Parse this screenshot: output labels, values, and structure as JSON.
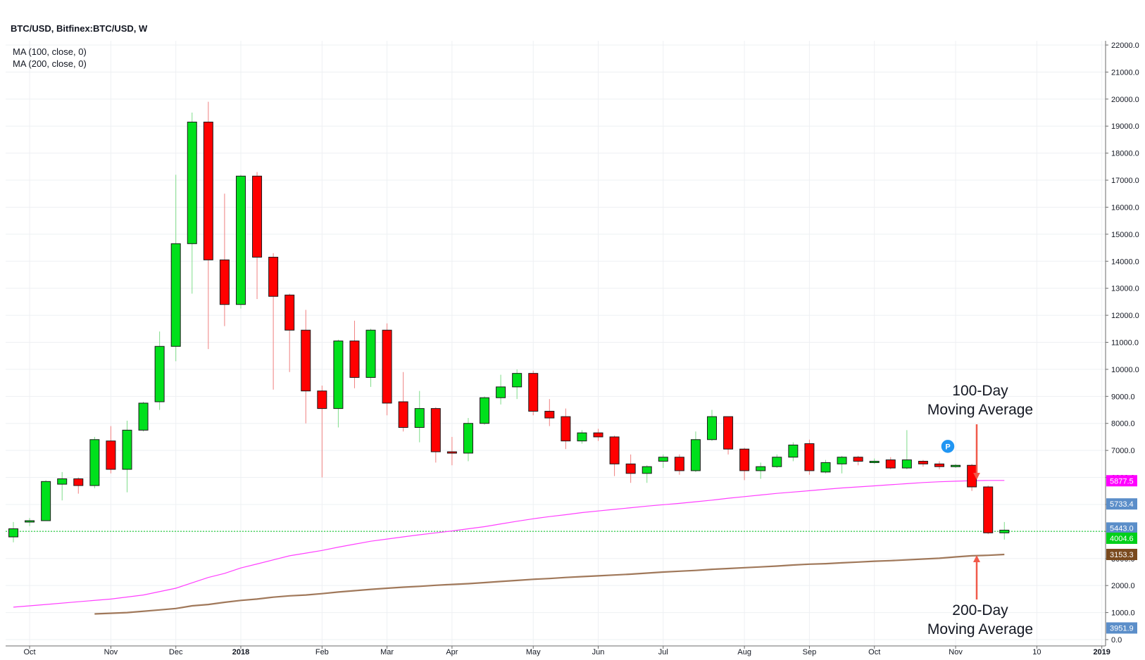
{
  "header": {
    "title": "BTC/USD, Bitfinex:BTC/USD, W",
    "indicators": [
      "MA (100, close, 0)",
      "MA (200, close, 0)"
    ]
  },
  "chart_data": {
    "type": "candlestick",
    "interval": "weekly",
    "ylim": [
      0,
      22000
    ],
    "yticks": [
      0,
      1000,
      2000,
      3000,
      4000,
      5000,
      6000,
      7000,
      8000,
      9000,
      10000,
      11000,
      12000,
      13000,
      14000,
      15000,
      16000,
      17000,
      18000,
      19000,
      20000,
      21000,
      22000
    ],
    "ytick_labels": [
      "0.0",
      "1000.0",
      "2000.0",
      "3000.0",
      "4000.0",
      "5000.0",
      "6000.0",
      "7000.0",
      "8000.0",
      "9000.0",
      "10000.0",
      "11000.0",
      "12000.0",
      "13000.0",
      "14000.0",
      "15000.0",
      "16000.0",
      "17000.0",
      "18000.0",
      "19000.0",
      "20000.0",
      "21000.0",
      "22000.0"
    ],
    "xticks": [
      {
        "label": "Oct",
        "week": 1,
        "bold": false
      },
      {
        "label": "Nov",
        "week": 6,
        "bold": false
      },
      {
        "label": "Dec",
        "week": 10,
        "bold": false
      },
      {
        "label": "2018",
        "week": 14,
        "bold": true
      },
      {
        "label": "Feb",
        "week": 19,
        "bold": false
      },
      {
        "label": "Mar",
        "week": 23,
        "bold": false
      },
      {
        "label": "Apr",
        "week": 27,
        "bold": false
      },
      {
        "label": "May",
        "week": 32,
        "bold": false
      },
      {
        "label": "Jun",
        "week": 36,
        "bold": false
      },
      {
        "label": "Jul",
        "week": 40,
        "bold": false
      },
      {
        "label": "Aug",
        "week": 45,
        "bold": false
      },
      {
        "label": "Sep",
        "week": 49,
        "bold": false
      },
      {
        "label": "Oct",
        "week": 53,
        "bold": false
      },
      {
        "label": "Nov",
        "week": 58,
        "bold": false
      },
      {
        "label": "10",
        "week": 63,
        "bold": false
      },
      {
        "label": "2019",
        "week": 67,
        "bold": true
      }
    ],
    "up_color": "#00e01c",
    "down_color": "#ff0000",
    "candles": [
      [
        0,
        3800,
        4100,
        3600,
        4350
      ],
      [
        1,
        4350,
        4400,
        4200,
        4500
      ],
      [
        2,
        4400,
        5850,
        4400,
        5900
      ],
      [
        3,
        5750,
        5950,
        5150,
        6200
      ],
      [
        4,
        5950,
        5700,
        5400,
        6000
      ],
      [
        5,
        5700,
        7400,
        5600,
        7500
      ],
      [
        6,
        7350,
        6300,
        6150,
        7900
      ],
      [
        7,
        6300,
        7750,
        5450,
        8100
      ],
      [
        8,
        7750,
        8750,
        7700,
        8800
      ],
      [
        9,
        8800,
        10850,
        8500,
        11400
      ],
      [
        10,
        10850,
        14650,
        10300,
        17200
      ],
      [
        11,
        14650,
        19150,
        12800,
        19500
      ],
      [
        12,
        19150,
        14050,
        10750,
        19900
      ],
      [
        13,
        14050,
        12400,
        11600,
        16500
      ],
      [
        14,
        12400,
        17150,
        12250,
        17200
      ],
      [
        15,
        17150,
        14150,
        12600,
        17300
      ],
      [
        16,
        14150,
        12700,
        9250,
        14300
      ],
      [
        17,
        12750,
        11450,
        9900,
        12800
      ],
      [
        18,
        11450,
        9200,
        8000,
        12200
      ],
      [
        19,
        9200,
        8550,
        6000,
        9400
      ],
      [
        20,
        8550,
        11050,
        7850,
        11100
      ],
      [
        21,
        11050,
        9700,
        9300,
        11800
      ],
      [
        22,
        9700,
        11450,
        9350,
        11500
      ],
      [
        23,
        11450,
        8750,
        8300,
        11700
      ],
      [
        24,
        8800,
        7850,
        7700,
        9900
      ],
      [
        25,
        7850,
        8550,
        7300,
        9200
      ],
      [
        26,
        8550,
        6950,
        6550,
        8600
      ],
      [
        27,
        6950,
        6900,
        6450,
        7500
      ],
      [
        28,
        6900,
        8000,
        6600,
        8200
      ],
      [
        29,
        8000,
        8950,
        7950,
        9000
      ],
      [
        30,
        8950,
        9350,
        8700,
        9800
      ],
      [
        31,
        9350,
        9850,
        8900,
        10000
      ],
      [
        32,
        9850,
        8450,
        8300,
        9950
      ],
      [
        33,
        8450,
        8200,
        7900,
        8900
      ],
      [
        34,
        8250,
        7350,
        7050,
        8550
      ],
      [
        35,
        7350,
        7650,
        7250,
        7750
      ],
      [
        36,
        7650,
        7500,
        7350,
        7800
      ],
      [
        37,
        7500,
        6500,
        6050,
        7550
      ],
      [
        38,
        6500,
        6150,
        5800,
        6850
      ],
      [
        39,
        6150,
        6400,
        5800,
        6450
      ],
      [
        40,
        6600,
        6750,
        6350,
        6850
      ],
      [
        41,
        6750,
        6250,
        6100,
        6850
      ],
      [
        42,
        6250,
        7400,
        6200,
        7700
      ],
      [
        43,
        7400,
        8250,
        7350,
        8500
      ],
      [
        44,
        8250,
        7050,
        6850,
        8250
      ],
      [
        45,
        7050,
        6250,
        5900,
        7100
      ],
      [
        46,
        6250,
        6400,
        5950,
        6550
      ],
      [
        47,
        6400,
        6750,
        6350,
        6850
      ],
      [
        48,
        6750,
        7200,
        6600,
        7300
      ],
      [
        49,
        7250,
        6250,
        6100,
        7400
      ],
      [
        50,
        6200,
        6550,
        6150,
        6650
      ],
      [
        51,
        6500,
        6750,
        6150,
        6800
      ],
      [
        52,
        6750,
        6600,
        6450,
        6800
      ],
      [
        53,
        6600,
        6600,
        6500,
        6700
      ],
      [
        54,
        6650,
        6350,
        6300,
        6750
      ],
      [
        55,
        6350,
        6650,
        6300,
        7750
      ],
      [
        56,
        6600,
        6500,
        6400,
        6650
      ],
      [
        57,
        6500,
        6400,
        6300,
        6600
      ],
      [
        58,
        6400,
        6450,
        6350,
        6500
      ],
      [
        59,
        6450,
        5650,
        5500,
        6500
      ],
      [
        60,
        5650,
        3950,
        3900,
        5700
      ],
      [
        61,
        3950,
        4050,
        3700,
        4350
      ]
    ],
    "series": [
      {
        "name": "MA (100, close, 0)",
        "color": "#ff40ff",
        "points": [
          [
            0,
            1200
          ],
          [
            2,
            1300
          ],
          [
            4,
            1400
          ],
          [
            6,
            1500
          ],
          [
            8,
            1650
          ],
          [
            10,
            1900
          ],
          [
            11,
            2100
          ],
          [
            12,
            2300
          ],
          [
            13,
            2450
          ],
          [
            14,
            2650
          ],
          [
            15,
            2800
          ],
          [
            16,
            2950
          ],
          [
            17,
            3100
          ],
          [
            18,
            3200
          ],
          [
            19,
            3300
          ],
          [
            20,
            3420
          ],
          [
            21,
            3530
          ],
          [
            22,
            3640
          ],
          [
            23,
            3720
          ],
          [
            24,
            3800
          ],
          [
            25,
            3880
          ],
          [
            26,
            3950
          ],
          [
            27,
            4020
          ],
          [
            28,
            4100
          ],
          [
            29,
            4180
          ],
          [
            30,
            4280
          ],
          [
            31,
            4380
          ],
          [
            32,
            4470
          ],
          [
            33,
            4550
          ],
          [
            34,
            4620
          ],
          [
            35,
            4700
          ],
          [
            36,
            4760
          ],
          [
            37,
            4820
          ],
          [
            38,
            4880
          ],
          [
            39,
            4940
          ],
          [
            40,
            4990
          ],
          [
            41,
            5040
          ],
          [
            42,
            5100
          ],
          [
            43,
            5160
          ],
          [
            44,
            5230
          ],
          [
            45,
            5290
          ],
          [
            46,
            5350
          ],
          [
            47,
            5410
          ],
          [
            48,
            5460
          ],
          [
            49,
            5510
          ],
          [
            50,
            5560
          ],
          [
            51,
            5610
          ],
          [
            52,
            5650
          ],
          [
            53,
            5690
          ],
          [
            54,
            5730
          ],
          [
            55,
            5770
          ],
          [
            56,
            5810
          ],
          [
            57,
            5840
          ],
          [
            58,
            5860
          ],
          [
            59,
            5880
          ],
          [
            60,
            5890
          ],
          [
            61,
            5890
          ]
        ]
      },
      {
        "name": "MA (200, close, 0)",
        "color": "#a0785a",
        "points": [
          [
            5,
            950
          ],
          [
            7,
            1000
          ],
          [
            9,
            1100
          ],
          [
            10,
            1150
          ],
          [
            11,
            1250
          ],
          [
            12,
            1300
          ],
          [
            13,
            1380
          ],
          [
            14,
            1450
          ],
          [
            15,
            1500
          ],
          [
            16,
            1570
          ],
          [
            17,
            1620
          ],
          [
            18,
            1650
          ],
          [
            19,
            1700
          ],
          [
            20,
            1760
          ],
          [
            21,
            1810
          ],
          [
            22,
            1860
          ],
          [
            23,
            1900
          ],
          [
            24,
            1940
          ],
          [
            25,
            1970
          ],
          [
            26,
            2010
          ],
          [
            27,
            2040
          ],
          [
            28,
            2070
          ],
          [
            29,
            2110
          ],
          [
            30,
            2150
          ],
          [
            31,
            2190
          ],
          [
            32,
            2230
          ],
          [
            33,
            2260
          ],
          [
            34,
            2300
          ],
          [
            35,
            2330
          ],
          [
            36,
            2360
          ],
          [
            37,
            2390
          ],
          [
            38,
            2420
          ],
          [
            39,
            2460
          ],
          [
            40,
            2500
          ],
          [
            41,
            2530
          ],
          [
            42,
            2560
          ],
          [
            43,
            2600
          ],
          [
            44,
            2630
          ],
          [
            45,
            2660
          ],
          [
            46,
            2690
          ],
          [
            47,
            2720
          ],
          [
            48,
            2760
          ],
          [
            49,
            2790
          ],
          [
            50,
            2810
          ],
          [
            51,
            2840
          ],
          [
            52,
            2870
          ],
          [
            53,
            2900
          ],
          [
            54,
            2920
          ],
          [
            55,
            2950
          ],
          [
            56,
            2980
          ],
          [
            57,
            3010
          ],
          [
            58,
            3060
          ],
          [
            59,
            3100
          ],
          [
            60,
            3120
          ],
          [
            61,
            3150
          ]
        ]
      }
    ],
    "current_price_line": 4004.6,
    "price_tags": [
      {
        "label": "5877.5",
        "value": 5877.5,
        "color": "#ff00ff"
      },
      {
        "label": "5733.4",
        "value": 5020,
        "color": "#5b8ec9"
      },
      {
        "label": "5443.0",
        "value": 4130,
        "color": "#5b8ec9"
      },
      {
        "label": "4004.6",
        "value": 3750,
        "color": "#00d01a"
      },
      {
        "label": "3153.3",
        "value": 3150,
        "color": "#7a4a1e"
      },
      {
        "label": "3951.9",
        "value": 430,
        "color": "#5b8ec9"
      }
    ],
    "annotations": [
      {
        "lines": [
          "100-Day",
          "Moving Average"
        ],
        "target": "MA (100, close, 0)"
      },
      {
        "lines": [
          "200-Day",
          "Moving Average"
        ],
        "target": "MA (200, close, 0)"
      }
    ],
    "marker": {
      "label": "P",
      "week": 57,
      "value": 7150,
      "color": "#2196f3"
    },
    "grid": true,
    "arrow_color": "#f05a4a"
  }
}
